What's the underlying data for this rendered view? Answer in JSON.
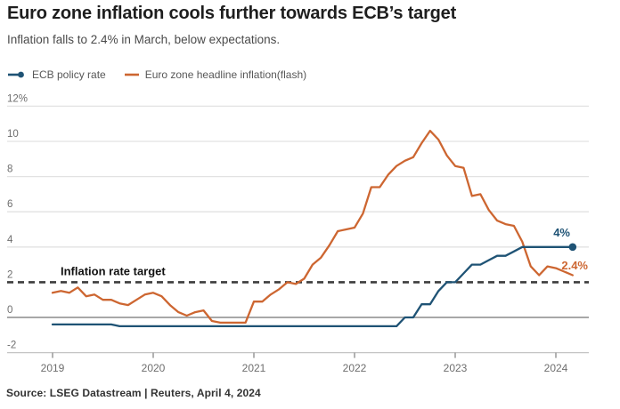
{
  "header": {
    "title": "Euro zone inflation cools further towards ECB’s target",
    "subtitle": "Inflation falls to 2.4% in March, below expectations."
  },
  "legend": {
    "items": [
      {
        "label": "ECB policy rate",
        "color": "#1f5375",
        "marker": "line-dot"
      },
      {
        "label": "Euro zone headline inflation(flash)",
        "color": "#cd6631",
        "marker": "line"
      }
    ]
  },
  "source": "Source: LSEG Datastream | Reuters, April 4, 2024",
  "colors": {
    "policy_blue": "#1f5375",
    "inflation_orange": "#cd6631",
    "gridline": "#e2e2e2",
    "zero_line": "#8c8c8c",
    "bottom_line": "#c4c4c4",
    "target_dash": "#3d3d3d",
    "axis_text": "#6e6e6e"
  },
  "chart_data": {
    "type": "line",
    "title": "Euro zone inflation vs ECB policy rate",
    "x_unit": "monthly, Jan 2019 - Mar 2024",
    "x_tick_labels": [
      "2019",
      "2020",
      "2021",
      "2022",
      "2023",
      "2024"
    ],
    "y_ticks": [
      {
        "value": 12,
        "label": "12%"
      },
      {
        "value": 10,
        "label": "10"
      },
      {
        "value": 8,
        "label": "8"
      },
      {
        "value": 6,
        "label": "6"
      },
      {
        "value": 4,
        "label": "4"
      },
      {
        "value": 2,
        "label": "2"
      },
      {
        "value": 0,
        "label": "0"
      },
      {
        "value": -2,
        "label": "-2"
      }
    ],
    "ylim": [
      -2.6,
      12.8
    ],
    "grid": true,
    "legend_position": "top-left",
    "target_line": {
      "value": 2,
      "label": "Inflation rate target"
    },
    "series": [
      {
        "name": "Euro zone headline inflation(flash)",
        "color": "#cd6631",
        "end_label": "2.4%",
        "end_marker": false,
        "values": [
          1.4,
          1.5,
          1.4,
          1.7,
          1.2,
          1.3,
          1.0,
          1.0,
          0.8,
          0.7,
          1.0,
          1.3,
          1.4,
          1.2,
          0.7,
          0.3,
          0.1,
          0.3,
          0.4,
          -0.2,
          -0.3,
          -0.3,
          -0.3,
          -0.3,
          0.9,
          0.9,
          1.3,
          1.6,
          2.0,
          1.9,
          2.2,
          3.0,
          3.4,
          4.1,
          4.9,
          5.0,
          5.1,
          5.9,
          7.4,
          7.4,
          8.1,
          8.6,
          8.9,
          9.1,
          9.9,
          10.6,
          10.1,
          9.2,
          8.6,
          8.5,
          6.9,
          7.0,
          6.1,
          5.5,
          5.3,
          5.2,
          4.3,
          2.9,
          2.4,
          2.9,
          2.8,
          2.6,
          2.4
        ]
      },
      {
        "name": "ECB policy rate",
        "color": "#1f5375",
        "end_label": "4%",
        "end_marker": true,
        "values": [
          -0.4,
          -0.4,
          -0.4,
          -0.4,
          -0.4,
          -0.4,
          -0.4,
          -0.4,
          -0.5,
          -0.5,
          -0.5,
          -0.5,
          -0.5,
          -0.5,
          -0.5,
          -0.5,
          -0.5,
          -0.5,
          -0.5,
          -0.5,
          -0.5,
          -0.5,
          -0.5,
          -0.5,
          -0.5,
          -0.5,
          -0.5,
          -0.5,
          -0.5,
          -0.5,
          -0.5,
          -0.5,
          -0.5,
          -0.5,
          -0.5,
          -0.5,
          -0.5,
          -0.5,
          -0.5,
          -0.5,
          -0.5,
          -0.5,
          0.0,
          0.0,
          0.75,
          0.75,
          1.5,
          2.0,
          2.0,
          2.5,
          3.0,
          3.0,
          3.25,
          3.5,
          3.5,
          3.75,
          4.0,
          4.0,
          4.0,
          4.0,
          4.0,
          4.0,
          4.0
        ]
      }
    ]
  }
}
